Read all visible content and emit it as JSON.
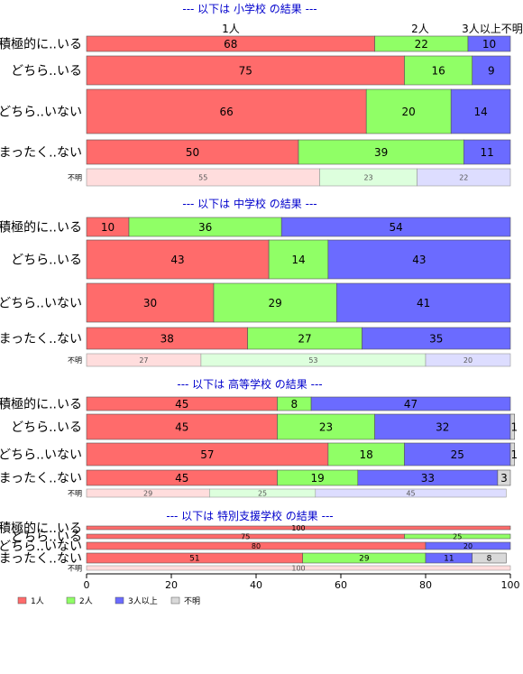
{
  "legend": [
    {
      "label": "1人",
      "color": "#ff6b6b"
    },
    {
      "label": "2人",
      "color": "#90ff66"
    },
    {
      "label": "3人以上",
      "color": "#6b6bff"
    },
    {
      "label": "不明",
      "color": "#d9d9d9"
    }
  ],
  "chart_data": {
    "type": "bar",
    "orientation": "horizontal",
    "stacked": true,
    "xlim": [
      0,
      100
    ],
    "xticks": [
      "0",
      "20",
      "40",
      "60",
      "80",
      "100"
    ],
    "column_labels": [
      "1人",
      "2人",
      "3人以上",
      "不明"
    ],
    "panels": [
      {
        "title": "--- 以下は 小学校 の結果 ---",
        "rows": [
          {
            "label": "積極的に..いる",
            "values": [
              68,
              22,
              10,
              0
            ]
          },
          {
            "label": "どちら..いる",
            "values": [
              75,
              16,
              9,
              0
            ]
          },
          {
            "label": "どちら..いない",
            "values": [
              66,
              20,
              14,
              0
            ]
          },
          {
            "label": "まったく..ない",
            "values": [
              50,
              39,
              11,
              0
            ]
          },
          {
            "label": "不明",
            "values": [
              55,
              23,
              22,
              0
            ],
            "unknown": true
          }
        ]
      },
      {
        "title": "--- 以下は 中学校 の結果 ---",
        "rows": [
          {
            "label": "積極的に..いる",
            "values": [
              10,
              36,
              54,
              0
            ]
          },
          {
            "label": "どちら..いる",
            "values": [
              43,
              14,
              43,
              0
            ]
          },
          {
            "label": "どちら..いない",
            "values": [
              30,
              29,
              41,
              0
            ]
          },
          {
            "label": "まったく..ない",
            "values": [
              38,
              27,
              35,
              0
            ]
          },
          {
            "label": "不明",
            "values": [
              27,
              53,
              20,
              0
            ],
            "unknown": true
          }
        ]
      },
      {
        "title": "--- 以下は 高等学校 の結果 ---",
        "rows": [
          {
            "label": "積極的に..いる",
            "values": [
              45,
              8,
              47,
              0
            ]
          },
          {
            "label": "どちら..いる",
            "values": [
              45,
              23,
              32,
              1
            ]
          },
          {
            "label": "どちら..いない",
            "values": [
              57,
              18,
              25,
              1
            ]
          },
          {
            "label": "まったく..ない",
            "values": [
              45,
              19,
              33,
              3
            ]
          },
          {
            "label": "不明",
            "values": [
              29,
              25,
              45,
              0
            ],
            "unknown": true
          }
        ]
      },
      {
        "title": "--- 以下は 特別支援学校 の結果 ---",
        "rows": [
          {
            "label": "積極的に..いる",
            "values": [
              100,
              0,
              0,
              0
            ]
          },
          {
            "label": "どちら..いる",
            "values": [
              75,
              25,
              0,
              0
            ]
          },
          {
            "label": "どちら..いない",
            "values": [
              80,
              0,
              20,
              0
            ]
          },
          {
            "label": "まったく..ない",
            "values": [
              51,
              29,
              11,
              8
            ]
          },
          {
            "label": "不明",
            "values": [
              100,
              0,
              0,
              0
            ],
            "unknown": true
          }
        ]
      }
    ]
  }
}
